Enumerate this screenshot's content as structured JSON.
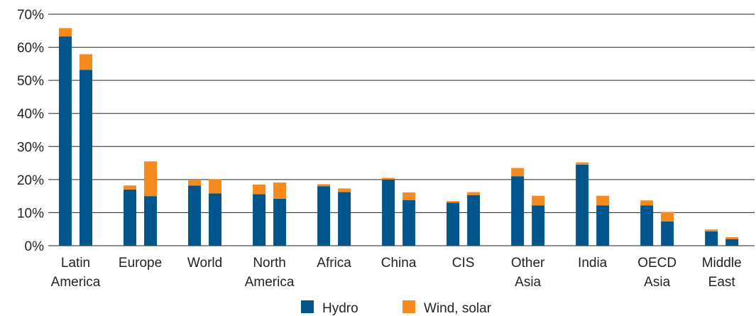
{
  "chart_data": {
    "type": "bar",
    "stacked": true,
    "bars_per_category": 2,
    "categories": [
      [
        "Latin",
        "America"
      ],
      [
        "Europe"
      ],
      [
        "World"
      ],
      [
        "North",
        "America"
      ],
      [
        "Africa"
      ],
      [
        "China"
      ],
      [
        "CIS"
      ],
      [
        "Other",
        "Asia"
      ],
      [
        "India"
      ],
      [
        "OECD",
        "Asia"
      ],
      [
        "Middle",
        "East"
      ]
    ],
    "series": [
      {
        "name": "Hydro",
        "color": "#00558c",
        "values": [
          [
            63.3,
            53.2
          ],
          [
            17.0,
            15.0
          ],
          [
            18.2,
            15.8
          ],
          [
            15.6,
            14.2
          ],
          [
            18.0,
            16.2
          ],
          [
            20.0,
            13.8
          ],
          [
            13.0,
            15.3
          ],
          [
            21.0,
            12.2
          ],
          [
            24.5,
            12.2
          ],
          [
            12.2,
            7.3
          ],
          [
            4.3,
            2.0
          ]
        ]
      },
      {
        "name": "Wind, solar",
        "color": "#f58a1f",
        "values": [
          [
            2.5,
            4.7
          ],
          [
            1.2,
            10.5
          ],
          [
            1.8,
            4.3
          ],
          [
            2.9,
            4.9
          ],
          [
            0.6,
            1.1
          ],
          [
            0.5,
            2.3
          ],
          [
            0.5,
            0.9
          ],
          [
            2.5,
            2.9
          ],
          [
            0.7,
            2.9
          ],
          [
            1.5,
            2.9
          ],
          [
            0.6,
            0.6
          ]
        ]
      }
    ],
    "y_ticks": [
      "0%",
      "10%",
      "20%",
      "30%",
      "40%",
      "50%",
      "60%",
      "70%"
    ],
    "ylim": [
      0,
      70
    ],
    "title": "",
    "xlabel": "",
    "ylabel": "",
    "grid": true,
    "legend_position": "bottom-center"
  }
}
